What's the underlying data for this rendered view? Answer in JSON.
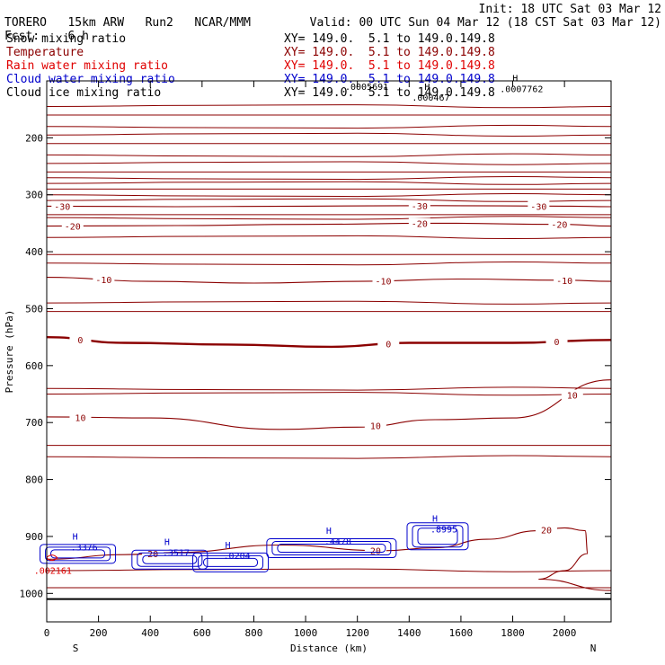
{
  "header": {
    "model": "TORERO",
    "resolution": "15km ARW",
    "run": "Run2",
    "org": "NCAR/MMM",
    "init": "Init: 18 UTC Sat 03 Mar 12",
    "fcst_label": "Fcst:",
    "fcst_value": "6 h",
    "valid": "Valid: 00 UTC Sun 04 Mar 12 (18 CST Sat 03 Mar 12)"
  },
  "legend": [
    {
      "name": "Snow mixing ratio",
      "xy": "XY= 149.0.  5.1 to 149.0.149.8",
      "color": "#000000"
    },
    {
      "name": "Temperature",
      "xy": "XY= 149.0.  5.1 to 149.0.149.8",
      "color": "#8b0000"
    },
    {
      "name": "Rain water mixing ratio",
      "xy": "XY= 149.0.  5.1 to 149.0.149.8",
      "color": "#e00000"
    },
    {
      "name": "Cloud water mixing ratio",
      "xy": "XY= 149.0.  5.1 to 149.0.149.8",
      "color": "#0000cc"
    },
    {
      "name": "Cloud ice mixing ratio",
      "xy": "XY= 149.0.  5.1 to 149.0.149.8",
      "color": "#000000"
    }
  ],
  "chart_data": {
    "type": "line",
    "title": "",
    "xlabel": "Distance (km)",
    "ylabel": "Pressure (hPa)",
    "xlim": [
      0,
      2180
    ],
    "ylim": [
      1050,
      100
    ],
    "x_ticks": [
      0,
      200,
      400,
      600,
      800,
      1000,
      1200,
      1400,
      1600,
      1800,
      2000
    ],
    "x_tick_labels": [
      "0",
      "200",
      "400",
      "600",
      "800",
      "1000",
      "1200",
      "1400",
      "1600",
      "1800",
      "2000"
    ],
    "y_ticks": [
      200,
      300,
      400,
      500,
      600,
      700,
      800,
      900,
      1000
    ],
    "y_tick_labels": [
      "200",
      "300",
      "400",
      "500",
      "600",
      "700",
      "800",
      "900",
      "1000"
    ],
    "x_end_labels": {
      "left": "S",
      "right": "N"
    },
    "surface_pressure": 1010,
    "temperature_contours": [
      {
        "value": -30,
        "label": "-30",
        "points": [
          [
            0,
            320
          ],
          [
            500,
            321
          ],
          [
            1000,
            320
          ],
          [
            1500,
            319
          ],
          [
            2000,
            320
          ],
          [
            2180,
            321
          ]
        ],
        "labels_at": [
          60,
          1440,
          1900
        ]
      },
      {
        "value": -20,
        "label": "-20",
        "points": [
          [
            0,
            355
          ],
          [
            500,
            354
          ],
          [
            1000,
            352
          ],
          [
            1500,
            350
          ],
          [
            2000,
            352
          ],
          [
            2180,
            355
          ]
        ],
        "labels_at": [
          100,
          1440,
          1980
        ]
      },
      {
        "value": -10,
        "label": "-10",
        "points": [
          [
            0,
            445
          ],
          [
            400,
            452
          ],
          [
            800,
            455
          ],
          [
            1200,
            452
          ],
          [
            1600,
            448
          ],
          [
            2000,
            450
          ],
          [
            2180,
            452
          ]
        ],
        "labels_at": [
          220,
          1300,
          2000
        ]
      },
      {
        "value": 0,
        "label": "0",
        "points": [
          [
            0,
            550
          ],
          [
            300,
            560
          ],
          [
            700,
            563
          ],
          [
            1100,
            567
          ],
          [
            1400,
            560
          ],
          [
            1800,
            560
          ],
          [
            2180,
            555
          ]
        ],
        "labels_at": [
          130,
          1320,
          1970
        ],
        "bold": true
      },
      {
        "value": 10,
        "label": "10",
        "points": [
          [
            0,
            690
          ],
          [
            400,
            692
          ],
          [
            900,
            712
          ],
          [
            1200,
            708
          ],
          [
            1500,
            695
          ],
          [
            1800,
            692
          ],
          [
            2180,
            625
          ]
        ],
        "labels_at": [
          130,
          1270,
          2030
        ]
      },
      {
        "value": 20,
        "label": "20",
        "points": [
          [
            0,
            940
          ],
          [
            300,
            932
          ],
          [
            500,
            928
          ],
          [
            900,
            915
          ],
          [
            1300,
            925
          ],
          [
            1500,
            920
          ],
          [
            1700,
            905
          ],
          [
            1900,
            890
          ],
          [
            2000,
            885
          ],
          [
            2080,
            890
          ],
          [
            2090,
            930
          ],
          [
            2000,
            960
          ],
          [
            1900,
            975
          ],
          [
            2180,
            995
          ]
        ],
        "labels_at": [
          410,
          1270,
          1930
        ]
      }
    ],
    "extra_isotherms": [
      145,
      160,
      180,
      195,
      210,
      230,
      245,
      260,
      270,
      280,
      290,
      300,
      310,
      335,
      340,
      375,
      405,
      420,
      490,
      505,
      640,
      650,
      740,
      760,
      960,
      990
    ],
    "cloud_water_maxima": [
      {
        "x": 120,
        "p": 918,
        "label": ".3376"
      },
      {
        "x": 475,
        "p": 928,
        "label": ".3517"
      },
      {
        "x": 710,
        "p": 933,
        "label": ".0204"
      },
      {
        "x": 1100,
        "p": 908,
        "label": ".4478"
      },
      {
        "x": 1510,
        "p": 887,
        "label": ".8995"
      }
    ],
    "snow_maxima": [
      {
        "x": 1480,
        "p": 135,
        "label": ".000467"
      },
      {
        "x": 1820,
        "p": 120,
        "label": ".0007762"
      }
    ],
    "rain_maxima": [
      {
        "x": 20,
        "p": 950,
        "label": ".002161"
      }
    ],
    "annotations": {
      "max_marker": "H",
      "top_label": ".0005691"
    }
  }
}
